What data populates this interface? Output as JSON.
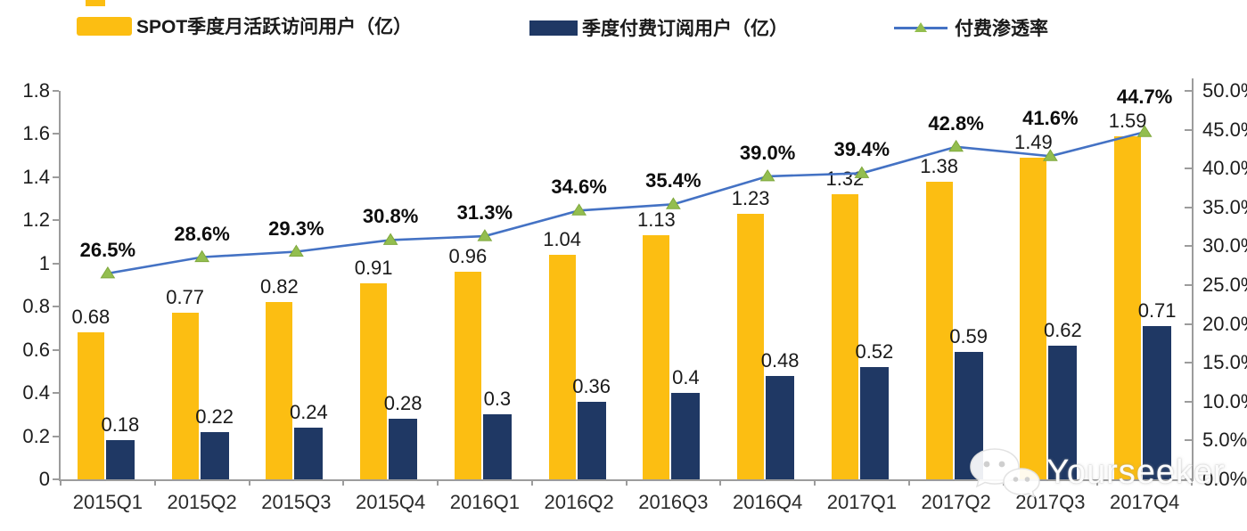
{
  "chart_data": {
    "type": "combo-bar-line",
    "categories": [
      "2015Q1",
      "2015Q2",
      "2015Q3",
      "2015Q4",
      "2016Q1",
      "2016Q2",
      "2016Q3",
      "2016Q4",
      "2017Q1",
      "2017Q2",
      "2017Q3",
      "2017Q4"
    ],
    "series": [
      {
        "name": "SPOT季度月活跃访问用户（亿）",
        "type": "bar",
        "color": "#FCBE12",
        "values": [
          0.68,
          0.77,
          0.82,
          0.91,
          0.96,
          1.04,
          1.13,
          1.23,
          1.32,
          1.38,
          1.49,
          1.59
        ],
        "labels": [
          "0.68",
          "0.77",
          "0.82",
          "0.91",
          "0.96",
          "1.04",
          "1.13",
          "1.23",
          "1.32",
          "1.38",
          "1.49",
          "1.59"
        ]
      },
      {
        "name": "季度付费订阅用户（亿）",
        "type": "bar",
        "color": "#1F3864",
        "values": [
          0.18,
          0.22,
          0.24,
          0.28,
          0.3,
          0.36,
          0.4,
          0.48,
          0.52,
          0.59,
          0.62,
          0.71
        ],
        "labels": [
          "0.18",
          "0.22",
          "0.24",
          "0.28",
          "0.3",
          "0.36",
          "0.4",
          "0.48",
          "0.52",
          "0.59",
          "0.62",
          "0.71"
        ]
      },
      {
        "name": "付费渗透率",
        "type": "line",
        "color": "#4472C4",
        "marker": "triangle-up",
        "marker_color": "#93BE4F",
        "marker_edge_color": "#7FA83D",
        "values": [
          26.5,
          28.6,
          29.3,
          30.8,
          31.3,
          34.6,
          35.4,
          39.0,
          39.4,
          42.8,
          41.6,
          44.7
        ],
        "labels": [
          "26.5%",
          "28.6%",
          "29.3%",
          "30.8%",
          "31.3%",
          "34.6%",
          "35.4%",
          "39.0%",
          "39.4%",
          "42.8%",
          "41.6%",
          "44.7%"
        ]
      }
    ],
    "left_axis": {
      "min": 0,
      "max": 1.8,
      "ticks": [
        "0",
        "0.2",
        "0.4",
        "0.6",
        "0.8",
        "1",
        "1.2",
        "1.4",
        "1.6",
        "1.8"
      ]
    },
    "right_axis": {
      "min": 0,
      "max": 50,
      "ticks": [
        "0.0%",
        "5.0%",
        "10.0%",
        "15.0%",
        "20.0%",
        "25.0%",
        "30.0%",
        "35.0%",
        "40.0%",
        "45.0%",
        "50.0%"
      ]
    },
    "grid": false,
    "legend_position": "top",
    "title": "",
    "xlabel": "",
    "ylabel": ""
  },
  "watermark": {
    "icon": "wechat-icon",
    "text": "Yourseeker"
  }
}
